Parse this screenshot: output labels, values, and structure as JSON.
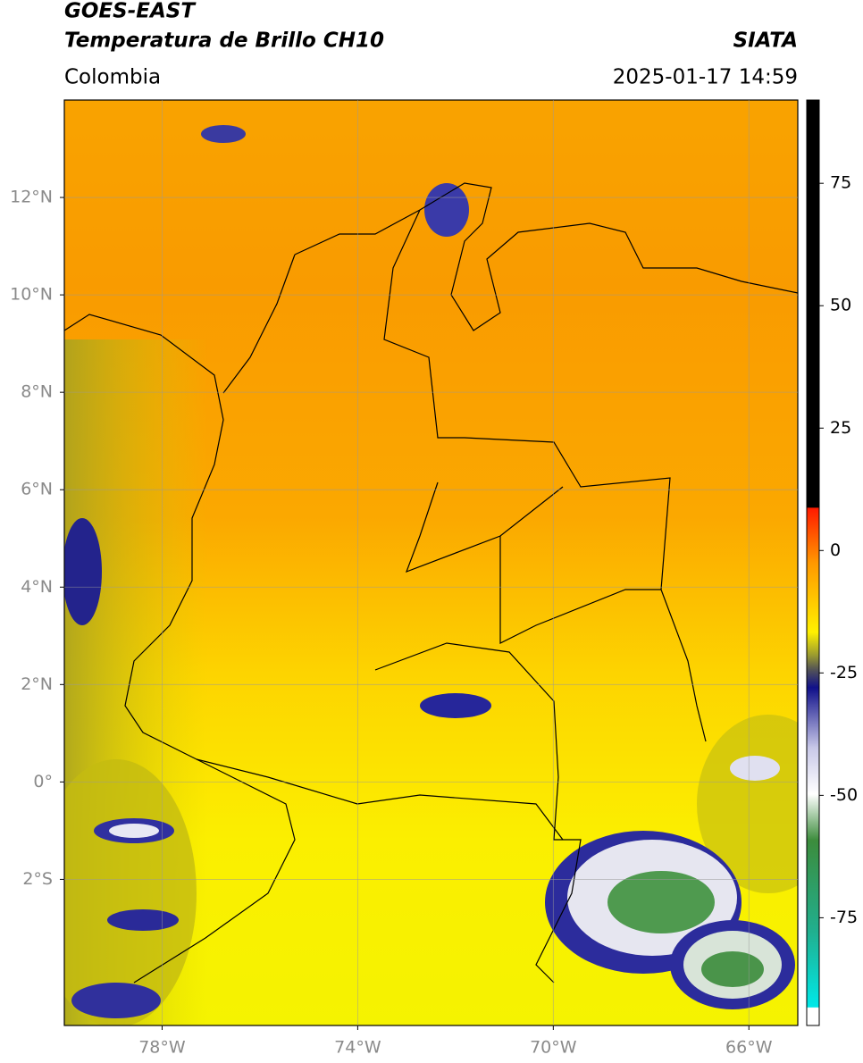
{
  "header": {
    "satellite": "GOES-EAST",
    "product": "Temperatura de Brillo CH10",
    "institution": "SIATA",
    "region": "Colombia",
    "datetime": "2025-01-17 14:59"
  },
  "map": {
    "lonlim": [
      -80,
      -65
    ],
    "latlim": [
      -5,
      14
    ],
    "lon_ticks": [
      {
        "value": -78,
        "label": "78°W"
      },
      {
        "value": -74,
        "label": "74°W"
      },
      {
        "value": -70,
        "label": "70°W"
      },
      {
        "value": -66,
        "label": "66°W"
      }
    ],
    "lat_ticks": [
      {
        "value": 12,
        "label": "12°N"
      },
      {
        "value": 10,
        "label": "10°N"
      },
      {
        "value": 8,
        "label": "8°N"
      },
      {
        "value": 6,
        "label": "6°N"
      },
      {
        "value": 4,
        "label": "4°N"
      },
      {
        "value": 2,
        "label": "2°N"
      },
      {
        "value": 0,
        "label": "0°"
      },
      {
        "value": -2,
        "label": "2°S"
      }
    ],
    "grid": true
  },
  "colorbar": {
    "lim": [
      -97,
      92
    ],
    "ticks": [
      75,
      50,
      25,
      0,
      -25,
      -50,
      -75
    ]
  }
}
